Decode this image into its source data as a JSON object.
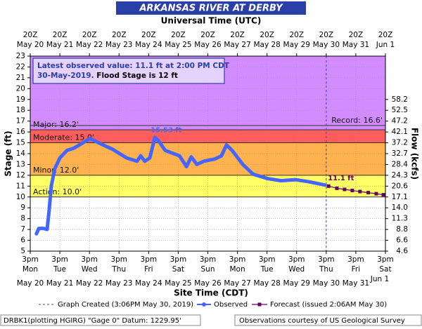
{
  "chart_data": {
    "type": "line",
    "title": "ARKANSAS RIVER AT DERBY",
    "top_axis_title": "Universal Time (UTC)",
    "bottom_axis_title": "Site Time (CDT)",
    "ylabel": "Stage (ft)",
    "y2label": "Flow (kcfs)",
    "xlim": [
      0,
      12
    ],
    "ylim": [
      5,
      23
    ],
    "yticks": [
      5,
      6,
      7,
      8,
      9,
      10,
      11,
      12,
      13,
      14,
      15,
      16,
      17,
      18,
      19,
      20,
      21,
      22,
      23
    ],
    "grid": true,
    "top_ticks": [
      {
        "day": 0,
        "time": "20Z",
        "date": "May 20"
      },
      {
        "day": 1,
        "time": "20Z",
        "date": "May 21"
      },
      {
        "day": 2,
        "time": "20Z",
        "date": "May 22"
      },
      {
        "day": 3,
        "time": "20Z",
        "date": "May 23"
      },
      {
        "day": 4,
        "time": "20Z",
        "date": "May 24"
      },
      {
        "day": 5,
        "time": "20Z",
        "date": "May 25"
      },
      {
        "day": 6,
        "time": "20Z",
        "date": "May 26"
      },
      {
        "day": 7,
        "time": "20Z",
        "date": "May 27"
      },
      {
        "day": 8,
        "time": "20Z",
        "date": "May 28"
      },
      {
        "day": 9,
        "time": "20Z",
        "date": "May 29"
      },
      {
        "day": 10,
        "time": "20Z",
        "date": "May 30"
      },
      {
        "day": 11,
        "time": "20Z",
        "date": "May 31"
      },
      {
        "day": 12,
        "time": "20Z",
        "date": "Jun 1"
      }
    ],
    "bottom_ticks": [
      {
        "day": 0,
        "time": "3pm",
        "weekday": "Mon",
        "date": "May 20"
      },
      {
        "day": 1,
        "time": "3pm",
        "weekday": "Tue",
        "date": "May 21"
      },
      {
        "day": 2,
        "time": "3pm",
        "weekday": "Wed",
        "date": "May 22"
      },
      {
        "day": 3,
        "time": "3pm",
        "weekday": "Thu",
        "date": "May 23"
      },
      {
        "day": 4,
        "time": "3pm",
        "weekday": "Fri",
        "date": "May 24"
      },
      {
        "day": 5,
        "time": "3pm",
        "weekday": "Sat",
        "date": "May 25"
      },
      {
        "day": 6,
        "time": "3pm",
        "weekday": "Sun",
        "date": "May 26"
      },
      {
        "day": 7,
        "time": "3pm",
        "weekday": "Mon",
        "date": "May 27"
      },
      {
        "day": 8,
        "time": "3pm",
        "weekday": "Tue",
        "date": "May 28"
      },
      {
        "day": 9,
        "time": "3pm",
        "weekday": "Wed",
        "date": "May 29"
      },
      {
        "day": 10,
        "time": "3pm",
        "weekday": "Thu",
        "date": "May 30"
      },
      {
        "day": 11,
        "time": "3pm",
        "weekday": "Fri",
        "date": "May 31"
      },
      {
        "day": 12,
        "time": "3pm",
        "weekday": "Sat",
        "date": "Jun 1"
      }
    ],
    "flow_ticks": [
      {
        "stage": 19,
        "label": "58.2"
      },
      {
        "stage": 18,
        "label": "52.5"
      },
      {
        "stage": 17,
        "label": "47.2"
      },
      {
        "stage": 16,
        "label": "42.1"
      },
      {
        "stage": 15,
        "label": "37.2"
      },
      {
        "stage": 14,
        "label": "32.7"
      },
      {
        "stage": 13,
        "label": "28.4"
      },
      {
        "stage": 12,
        "label": "24.3"
      },
      {
        "stage": 11,
        "label": "20.6"
      },
      {
        "stage": 10,
        "label": "17.1"
      },
      {
        "stage": 9,
        "label": "14.0"
      },
      {
        "stage": 8,
        "label": "11.3"
      },
      {
        "stage": 7,
        "label": "8.8"
      },
      {
        "stage": 6,
        "label": "6.6"
      },
      {
        "stage": 5,
        "label": "4.6"
      }
    ],
    "flood_categories": [
      {
        "label": "Action: 10.0'",
        "stage": 10,
        "color": "#ffff66",
        "side": "left"
      },
      {
        "label": "Minor: 12.0'",
        "stage": 12,
        "color": "#ffb24d",
        "side": "left"
      },
      {
        "label": "Moderate: 15.0'",
        "stage": 15,
        "color": "#ff5c5c",
        "side": "left"
      },
      {
        "label": "Major: 16.2'",
        "stage": 16.2,
        "color": "#d38cff",
        "side": "left"
      },
      {
        "label": "Record: 16.6'",
        "stage": 16.6,
        "color": null,
        "side": "right"
      }
    ],
    "series": [
      {
        "name": "Observed",
        "color": "#4466ff",
        "x": [
          0.21,
          0.29,
          0.45,
          0.57,
          0.64,
          0.71,
          0.83,
          1.0,
          1.24,
          1.47,
          1.78,
          2.02,
          2.31,
          2.78,
          3.26,
          3.61,
          3.73,
          3.87,
          4.04,
          4.21,
          4.33,
          4.56,
          5.04,
          5.28,
          5.44,
          5.63,
          5.87,
          6.23,
          6.46,
          6.63,
          6.82,
          7.18,
          7.53,
          8.01,
          8.48,
          8.96,
          9.43,
          9.96
        ],
        "y": [
          6.6,
          7.1,
          7.1,
          7.0,
          8.8,
          11.0,
          12.6,
          13.6,
          14.3,
          14.5,
          15.0,
          15.4,
          15.0,
          14.4,
          13.6,
          13.3,
          13.8,
          13.3,
          13.6,
          15.5,
          15.2,
          14.3,
          13.8,
          12.8,
          13.7,
          13.0,
          13.3,
          13.5,
          13.8,
          14.8,
          14.3,
          13.0,
          12.1,
          11.7,
          11.5,
          11.6,
          11.4,
          11.1
        ]
      },
      {
        "name": "Forecast (issued 2:06AM May 30)",
        "color": "#660066",
        "x": [
          10.08,
          10.36,
          10.62,
          10.88,
          11.14,
          11.42,
          11.69,
          11.93
        ],
        "y": [
          11.0,
          10.8,
          10.7,
          10.6,
          10.5,
          10.4,
          10.3,
          10.2
        ]
      }
    ],
    "annotations": [
      {
        "text": "15.53 ft",
        "x": 4.21,
        "y": 15.53
      },
      {
        "text": "11.1 ft",
        "x": 9.96,
        "y": 11.1
      }
    ],
    "created_line": {
      "label": "Graph Created (3:06PM May 30, 2019)",
      "x": 10.0
    },
    "info": {
      "line1": "Latest observed value: 11.1 ft at 2:00 PM CDT",
      "line2": "30-May-2019.",
      "flood": "Flood Stage is 12 ft"
    },
    "footer_left": "DRBK1(plotting HGIRG) \"Gage 0\" Datum: 1229.95'",
    "footer_right": "Observations courtesy of US Geological Survey"
  }
}
